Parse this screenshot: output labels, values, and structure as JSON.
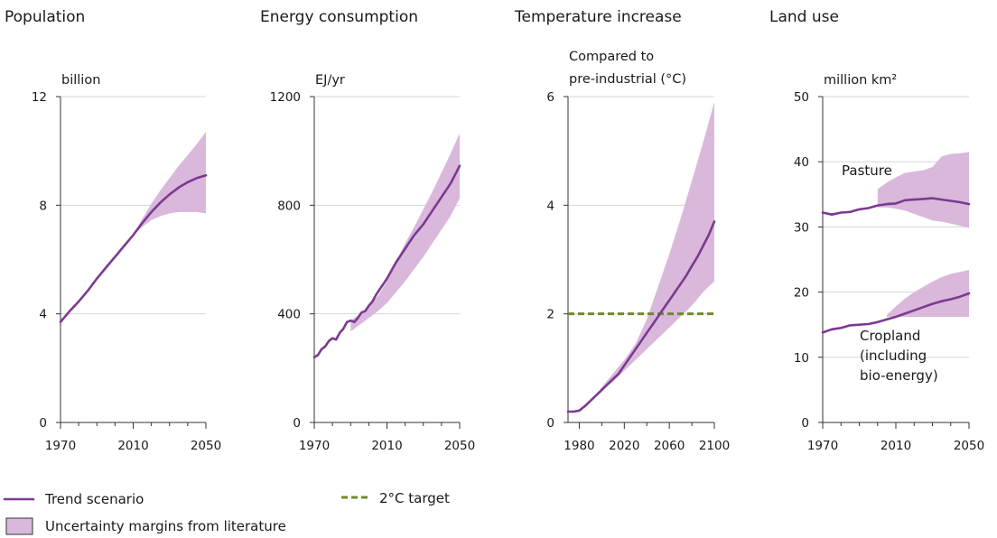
{
  "legend": {
    "trend": "Trend scenario",
    "target": "2°C target",
    "band": "Uncertainty margins from literature"
  },
  "colors": {
    "trend": "#7b3a8f",
    "band": "#d9b8dc",
    "target": "#6f8a2a",
    "grid": "#d6d6d6"
  },
  "chart_data": [
    {
      "type": "line",
      "title": "Population",
      "ylabel": "billion",
      "xlim": [
        1970,
        2050
      ],
      "ylim": [
        0,
        12
      ],
      "xticks": [
        1970,
        2010,
        2050
      ],
      "xminor": [
        1980,
        1990,
        2000,
        2020,
        2030,
        2040
      ],
      "yticks": [
        0,
        4,
        8,
        12
      ],
      "grid": true,
      "series": [
        {
          "name": "Trend scenario",
          "x": [
            1970,
            1975,
            1980,
            1985,
            1990,
            1995,
            2000,
            2005,
            2010,
            2015,
            2020,
            2025,
            2030,
            2035,
            2040,
            2045,
            2050
          ],
          "y": [
            3.7,
            4.1,
            4.45,
            4.85,
            5.3,
            5.7,
            6.1,
            6.5,
            6.9,
            7.35,
            7.75,
            8.1,
            8.4,
            8.65,
            8.85,
            9.0,
            9.1
          ]
        }
      ],
      "band": {
        "x": [
          2010,
          2015,
          2020,
          2025,
          2030,
          2035,
          2040,
          2045,
          2050
        ],
        "lower": [
          6.9,
          7.2,
          7.45,
          7.6,
          7.7,
          7.75,
          7.75,
          7.75,
          7.7
        ],
        "upper": [
          6.9,
          7.5,
          8.05,
          8.55,
          9.0,
          9.45,
          9.85,
          10.25,
          10.7
        ]
      }
    },
    {
      "type": "line",
      "title": "Energy consumption",
      "ylabel": "EJ/yr",
      "xlim": [
        1970,
        2050
      ],
      "ylim": [
        0,
        1200
      ],
      "xticks": [
        1970,
        2010,
        2050
      ],
      "xminor": [
        1980,
        1990,
        2000,
        2020,
        2030,
        2040
      ],
      "yticks": [
        0,
        400,
        800,
        1200
      ],
      "grid": true,
      "series": [
        {
          "name": "Trend scenario",
          "x": [
            1970,
            1972,
            1974,
            1976,
            1978,
            1980,
            1982,
            1984,
            1986,
            1988,
            1990,
            1992,
            1994,
            1996,
            1998,
            2000,
            2002,
            2004,
            2006,
            2008,
            2010,
            2015,
            2020,
            2025,
            2030,
            2035,
            2040,
            2045,
            2050
          ],
          "y": [
            240,
            248,
            270,
            280,
            300,
            310,
            305,
            330,
            345,
            370,
            375,
            370,
            385,
            405,
            410,
            430,
            445,
            470,
            490,
            510,
            530,
            590,
            640,
            690,
            730,
            780,
            830,
            880,
            945
          ]
        }
      ],
      "band": {
        "x": [
          1990,
          1995,
          2000,
          2005,
          2010,
          2015,
          2020,
          2025,
          2030,
          2035,
          2040,
          2045,
          2050
        ],
        "lower": [
          335,
          360,
          385,
          410,
          440,
          480,
          520,
          565,
          610,
          660,
          710,
          760,
          825
        ],
        "upper": [
          375,
          400,
          430,
          465,
          520,
          590,
          660,
          720,
          785,
          850,
          920,
          990,
          1065
        ]
      }
    },
    {
      "type": "line",
      "title": "Temperature increase",
      "ylabel": "Compared to\npre-industrial (°C)",
      "xlim": [
        1970,
        2100
      ],
      "ylim": [
        0,
        6
      ],
      "xticks": [
        1980,
        2020,
        2060,
        2100
      ],
      "xminor": [
        2000,
        2040,
        2080
      ],
      "yticks": [
        0,
        2,
        4,
        6
      ],
      "grid": true,
      "series": [
        {
          "name": "Trend scenario",
          "x": [
            1970,
            1975,
            1980,
            1985,
            1990,
            1995,
            2000,
            2005,
            2010,
            2015,
            2020,
            2025,
            2030,
            2035,
            2040,
            2045,
            2050,
            2055,
            2060,
            2065,
            2070,
            2075,
            2080,
            2085,
            2090,
            2095,
            2100
          ],
          "y": [
            0.2,
            0.2,
            0.22,
            0.3,
            0.4,
            0.5,
            0.6,
            0.7,
            0.8,
            0.9,
            1.05,
            1.2,
            1.35,
            1.5,
            1.65,
            1.8,
            1.95,
            2.1,
            2.25,
            2.4,
            2.55,
            2.7,
            2.88,
            3.05,
            3.25,
            3.45,
            3.7
          ]
        }
      ],
      "band": {
        "x": [
          1995,
          2000,
          2010,
          2020,
          2030,
          2040,
          2050,
          2060,
          2070,
          2080,
          2090,
          2100
        ],
        "lower": [
          0.5,
          0.6,
          0.75,
          0.95,
          1.15,
          1.35,
          1.55,
          1.75,
          1.95,
          2.15,
          2.4,
          2.6
        ],
        "upper": [
          0.5,
          0.65,
          0.9,
          1.15,
          1.45,
          1.9,
          2.5,
          3.1,
          3.75,
          4.45,
          5.15,
          5.9
        ]
      },
      "reference": {
        "name": "2°C target",
        "y": 2
      }
    },
    {
      "type": "line",
      "title": "Land use",
      "ylabel": "million km²",
      "xlim": [
        1970,
        2050
      ],
      "ylim": [
        0,
        50
      ],
      "xticks": [
        1970,
        2010,
        2050
      ],
      "xminor": [
        1980,
        1990,
        2000,
        2020,
        2030,
        2040
      ],
      "yticks": [
        0,
        10,
        20,
        30,
        40,
        50
      ],
      "grid": true,
      "series": [
        {
          "name": "Pasture",
          "x": [
            1970,
            1975,
            1980,
            1985,
            1990,
            1995,
            2000,
            2005,
            2010,
            2015,
            2020,
            2025,
            2030,
            2035,
            2040,
            2045,
            2050
          ],
          "y": [
            32.2,
            31.9,
            32.2,
            32.3,
            32.7,
            32.9,
            33.3,
            33.5,
            33.6,
            34.1,
            34.2,
            34.3,
            34.4,
            34.2,
            34.0,
            33.8,
            33.5
          ]
        },
        {
          "name": "Cropland\n(including\nbio-energy)",
          "x": [
            1970,
            1975,
            1980,
            1985,
            1990,
            1995,
            2000,
            2005,
            2010,
            2015,
            2020,
            2025,
            2030,
            2035,
            2040,
            2045,
            2050
          ],
          "y": [
            13.8,
            14.3,
            14.5,
            14.9,
            15.0,
            15.1,
            15.4,
            15.8,
            16.2,
            16.7,
            17.2,
            17.7,
            18.2,
            18.6,
            18.9,
            19.3,
            19.8
          ]
        }
      ],
      "bands": [
        {
          "for": "Pasture",
          "x": [
            2000,
            2005,
            2010,
            2015,
            2020,
            2025,
            2030,
            2035,
            2040,
            2045,
            2050
          ],
          "lower": [
            33.0,
            33.0,
            32.8,
            32.5,
            32.0,
            31.5,
            31.0,
            30.8,
            30.5,
            30.2,
            29.8
          ],
          "upper": [
            35.8,
            36.8,
            37.6,
            38.3,
            38.5,
            38.7,
            39.2,
            40.8,
            41.2,
            41.3,
            41.5
          ]
        },
        {
          "for": "Cropland",
          "x": [
            2005,
            2010,
            2015,
            2020,
            2025,
            2030,
            2035,
            2040,
            2045,
            2050
          ],
          "lower": [
            16.2,
            16.2,
            16.2,
            16.2,
            16.2,
            16.2,
            16.2,
            16.2,
            16.2,
            16.2
          ],
          "upper": [
            16.5,
            17.8,
            19.0,
            20.0,
            20.8,
            21.6,
            22.3,
            22.8,
            23.1,
            23.4
          ]
        }
      ]
    }
  ]
}
